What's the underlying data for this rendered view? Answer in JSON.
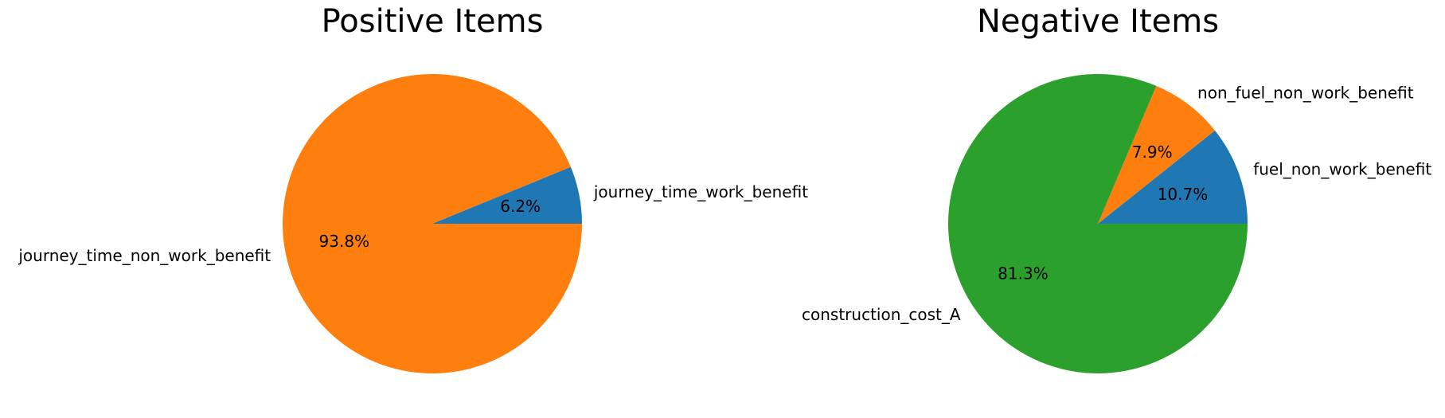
{
  "chart_data": [
    {
      "type": "pie",
      "title": "Positive Items",
      "slices": [
        {
          "label": "journey_time_work_benefit",
          "value": 6.2,
          "pct_label": "6.2%",
          "color": "#1f77b4"
        },
        {
          "label": "journey_time_non_work_benefit",
          "value": 93.8,
          "pct_label": "93.8%",
          "color": "#ff7f0e"
        }
      ]
    },
    {
      "type": "pie",
      "title": "Negative Items",
      "slices": [
        {
          "label": "fuel_non_work_benefit",
          "value": 10.7,
          "pct_label": "10.7%",
          "color": "#1f77b4"
        },
        {
          "label": "non_fuel_non_work_benefit",
          "value": 7.9,
          "pct_label": "7.9%",
          "color": "#ff7f0e"
        },
        {
          "label": "construction_cost_A",
          "value": 81.3,
          "pct_label": "81.3%",
          "color": "#2ca02c"
        }
      ]
    }
  ]
}
